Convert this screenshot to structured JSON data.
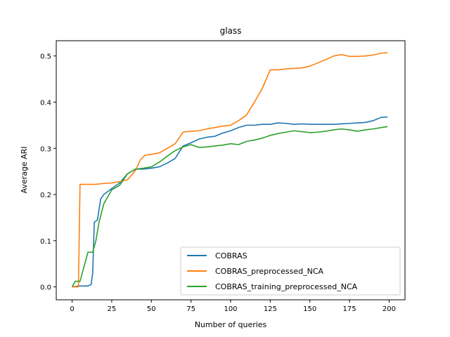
{
  "chart_data": {
    "type": "line",
    "title": "glass",
    "xlabel": "Number of queries",
    "ylabel": "Average ARI",
    "xlim": [
      -10,
      210
    ],
    "ylim": [
      -0.028,
      0.533
    ],
    "xticks": [
      0,
      25,
      50,
      75,
      100,
      125,
      150,
      175,
      200
    ],
    "yticks": [
      0.0,
      0.1,
      0.2,
      0.3,
      0.4,
      0.5
    ],
    "ytick_labels": [
      "0.0",
      "0.1",
      "0.2",
      "0.3",
      "0.4",
      "0.5"
    ],
    "grid": false,
    "legend_position": "lower-right",
    "series": [
      {
        "name": "COBRAS",
        "color": "#1f77b4",
        "points": [
          [
            0,
            0.0
          ],
          [
            5,
            0.002
          ],
          [
            10,
            0.002
          ],
          [
            12,
            0.005
          ],
          [
            13,
            0.03
          ],
          [
            14,
            0.14
          ],
          [
            16,
            0.145
          ],
          [
            18,
            0.19
          ],
          [
            20,
            0.2
          ],
          [
            25,
            0.213
          ],
          [
            30,
            0.225
          ],
          [
            35,
            0.245
          ],
          [
            40,
            0.255
          ],
          [
            45,
            0.255
          ],
          [
            50,
            0.257
          ],
          [
            55,
            0.26
          ],
          [
            60,
            0.268
          ],
          [
            65,
            0.278
          ],
          [
            70,
            0.305
          ],
          [
            75,
            0.312
          ],
          [
            80,
            0.32
          ],
          [
            85,
            0.324
          ],
          [
            90,
            0.326
          ],
          [
            95,
            0.333
          ],
          [
            100,
            0.338
          ],
          [
            105,
            0.345
          ],
          [
            110,
            0.35
          ],
          [
            115,
            0.35
          ],
          [
            120,
            0.352
          ],
          [
            125,
            0.352
          ],
          [
            130,
            0.355
          ],
          [
            135,
            0.354
          ],
          [
            140,
            0.352
          ],
          [
            145,
            0.353
          ],
          [
            150,
            0.352
          ],
          [
            155,
            0.352
          ],
          [
            160,
            0.352
          ],
          [
            165,
            0.352
          ],
          [
            170,
            0.353
          ],
          [
            175,
            0.354
          ],
          [
            180,
            0.355
          ],
          [
            185,
            0.356
          ],
          [
            190,
            0.36
          ],
          [
            195,
            0.367
          ],
          [
            199,
            0.368
          ]
        ]
      },
      {
        "name": "COBRAS_preprocessed_NCA",
        "color": "#ff7f0e",
        "points": [
          [
            0,
            0.0
          ],
          [
            4,
            0.0
          ],
          [
            5,
            0.222
          ],
          [
            10,
            0.222
          ],
          [
            15,
            0.222
          ],
          [
            20,
            0.224
          ],
          [
            25,
            0.225
          ],
          [
            30,
            0.228
          ],
          [
            35,
            0.232
          ],
          [
            40,
            0.252
          ],
          [
            43,
            0.275
          ],
          [
            46,
            0.285
          ],
          [
            50,
            0.287
          ],
          [
            55,
            0.29
          ],
          [
            60,
            0.3
          ],
          [
            65,
            0.31
          ],
          [
            70,
            0.335
          ],
          [
            75,
            0.337
          ],
          [
            80,
            0.338
          ],
          [
            85,
            0.342
          ],
          [
            90,
            0.345
          ],
          [
            95,
            0.348
          ],
          [
            100,
            0.35
          ],
          [
            105,
            0.36
          ],
          [
            110,
            0.372
          ],
          [
            115,
            0.4
          ],
          [
            120,
            0.43
          ],
          [
            125,
            0.47
          ],
          [
            130,
            0.47
          ],
          [
            135,
            0.472
          ],
          [
            140,
            0.473
          ],
          [
            145,
            0.474
          ],
          [
            150,
            0.478
          ],
          [
            155,
            0.485
          ],
          [
            160,
            0.492
          ],
          [
            165,
            0.5
          ],
          [
            170,
            0.503
          ],
          [
            175,
            0.499
          ],
          [
            180,
            0.499
          ],
          [
            185,
            0.5
          ],
          [
            190,
            0.502
          ],
          [
            195,
            0.506
          ],
          [
            199,
            0.507
          ]
        ]
      },
      {
        "name": "COBRAS_training_preprocessed_NCA",
        "color": "#2ca02c",
        "points": [
          [
            0,
            0.0
          ],
          [
            2,
            0.012
          ],
          [
            5,
            0.012
          ],
          [
            8,
            0.05
          ],
          [
            10,
            0.075
          ],
          [
            13,
            0.075
          ],
          [
            15,
            0.1
          ],
          [
            17,
            0.14
          ],
          [
            20,
            0.18
          ],
          [
            25,
            0.21
          ],
          [
            30,
            0.22
          ],
          [
            35,
            0.245
          ],
          [
            40,
            0.255
          ],
          [
            45,
            0.257
          ],
          [
            50,
            0.26
          ],
          [
            55,
            0.27
          ],
          [
            60,
            0.283
          ],
          [
            65,
            0.295
          ],
          [
            70,
            0.303
          ],
          [
            75,
            0.308
          ],
          [
            80,
            0.302
          ],
          [
            85,
            0.303
          ],
          [
            90,
            0.305
          ],
          [
            95,
            0.307
          ],
          [
            100,
            0.31
          ],
          [
            105,
            0.308
          ],
          [
            110,
            0.315
          ],
          [
            115,
            0.318
          ],
          [
            120,
            0.322
          ],
          [
            125,
            0.328
          ],
          [
            130,
            0.332
          ],
          [
            135,
            0.335
          ],
          [
            140,
            0.338
          ],
          [
            145,
            0.336
          ],
          [
            150,
            0.334
          ],
          [
            155,
            0.335
          ],
          [
            160,
            0.337
          ],
          [
            165,
            0.34
          ],
          [
            170,
            0.342
          ],
          [
            175,
            0.34
          ],
          [
            180,
            0.337
          ],
          [
            185,
            0.34
          ],
          [
            190,
            0.342
          ],
          [
            195,
            0.345
          ],
          [
            199,
            0.347
          ]
        ]
      }
    ]
  }
}
